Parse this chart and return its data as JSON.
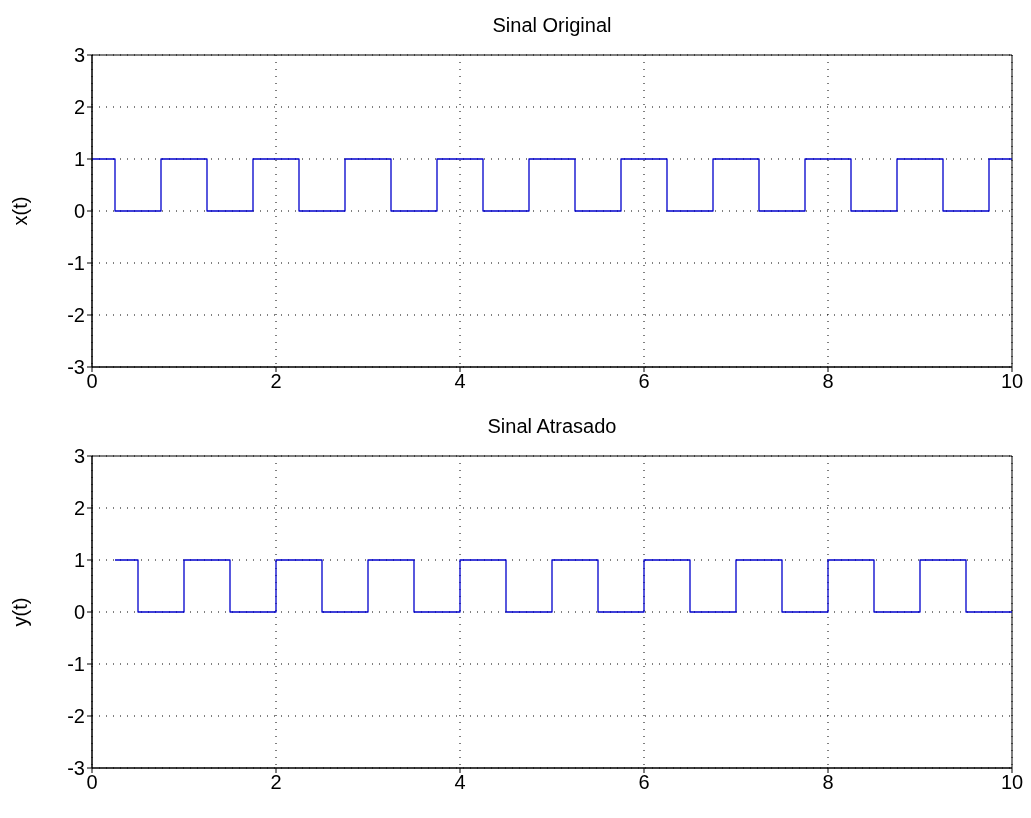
{
  "chart_data": [
    {
      "type": "step",
      "title": "Sinal Original",
      "ylabel": "x(t)",
      "x": [
        0,
        0.25,
        0.75,
        1.25,
        1.75,
        2.25,
        2.75,
        3.25,
        3.75,
        4.25,
        4.75,
        5.25,
        5.75,
        6.25,
        6.75,
        7.25,
        7.75,
        8.25,
        8.75,
        9.25,
        9.75,
        10
      ],
      "values": [
        1,
        0,
        1,
        0,
        1,
        0,
        1,
        0,
        1,
        0,
        1,
        0,
        1,
        0,
        1,
        0,
        1,
        0,
        1,
        0,
        1,
        1
      ],
      "color": "#0000cc",
      "xlim": [
        0,
        10
      ],
      "xticks": [
        0,
        2,
        4,
        6,
        8,
        10
      ],
      "ylim": [
        -3,
        3
      ],
      "yticks": [
        -3,
        -2,
        -1,
        0,
        1,
        2,
        3
      ],
      "grid": true
    },
    {
      "type": "step",
      "title": "Sinal Atrasado",
      "ylabel": "y(t)",
      "x": [
        0.25,
        0.5,
        1,
        1.5,
        2,
        2.5,
        3,
        3.5,
        4,
        4.5,
        5,
        5.5,
        6,
        6.5,
        7,
        7.5,
        8,
        8.5,
        9,
        9.5,
        10
      ],
      "values": [
        1,
        0,
        1,
        0,
        1,
        0,
        1,
        0,
        1,
        0,
        1,
        0,
        1,
        0,
        1,
        0,
        1,
        0,
        1,
        0,
        0
      ],
      "color": "#0000cc",
      "xlim": [
        0,
        10
      ],
      "xticks": [
        0,
        2,
        4,
        6,
        8,
        10
      ],
      "ylim": [
        -3,
        3
      ],
      "yticks": [
        -3,
        -2,
        -1,
        0,
        1,
        2,
        3
      ],
      "grid": true
    }
  ]
}
